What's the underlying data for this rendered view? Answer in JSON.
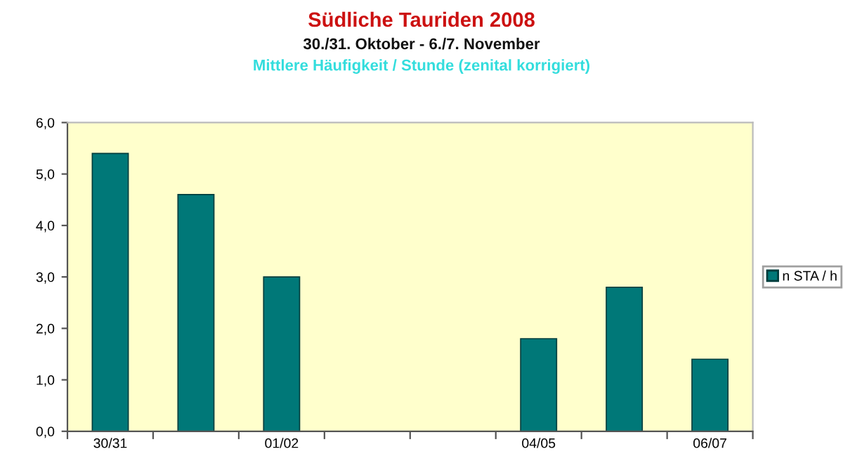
{
  "chart_data": {
    "type": "bar",
    "title": "Südliche Tauriden 2008",
    "subtitle": "30./31. Oktober - 6./7. November",
    "annotations": [
      "Mittlere Häufigkeit / Stunde (zenital korrigiert)"
    ],
    "categories": [
      "30/31",
      null,
      "01/02",
      null,
      null,
      "04/05",
      null,
      "06/07"
    ],
    "series": [
      {
        "name": "n STA / h",
        "color": "#007878",
        "values": [
          5.4,
          4.6,
          3.0,
          null,
          null,
          1.8,
          2.8,
          1.4
        ]
      }
    ],
    "ylim": [
      0,
      6
    ],
    "yticks": [
      {
        "value": 0,
        "label": "0,0"
      },
      {
        "value": 1,
        "label": "1,0"
      },
      {
        "value": 2,
        "label": "2,0"
      },
      {
        "value": 3,
        "label": "3,0"
      },
      {
        "value": 4,
        "label": "4,0"
      },
      {
        "value": 5,
        "label": "5,0"
      },
      {
        "value": 6,
        "label": "6,0"
      }
    ],
    "grid": false,
    "legend": "right"
  }
}
